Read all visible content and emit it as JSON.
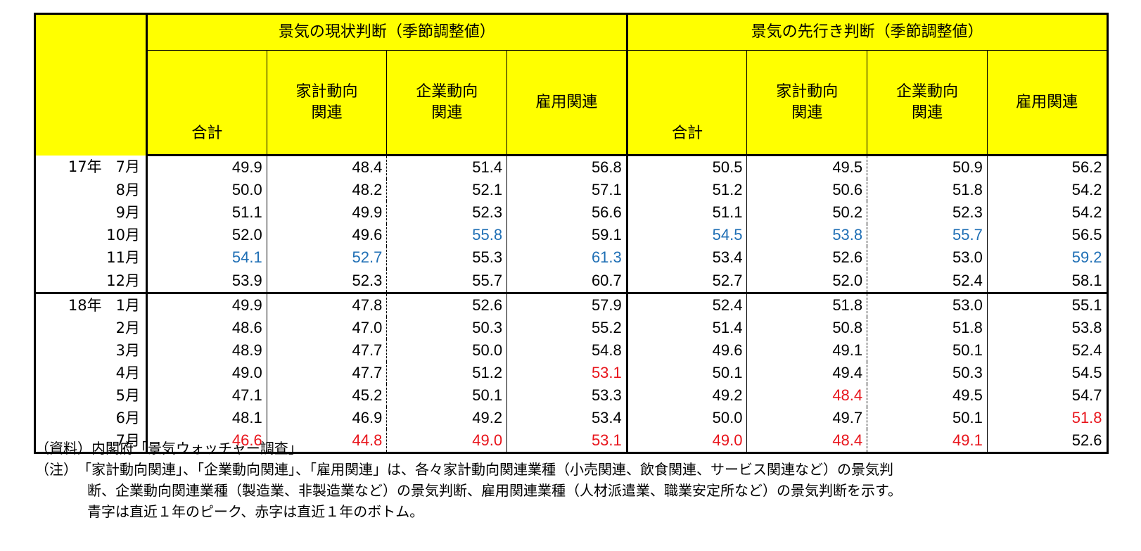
{
  "header": {
    "group1": "景気の現状判断（季節調整値）",
    "group2": "景気の先行き判断（季節調整値）",
    "columns": [
      "合計",
      "家計動向\n関連",
      "企業動向\n関連",
      "雇用関連",
      "合計",
      "家計動向\n関連",
      "企業動向\n関連",
      "雇用関連"
    ]
  },
  "rows": [
    {
      "year": "17年",
      "month": "7月",
      "values": [
        "49.9",
        "48.4",
        "51.4",
        "56.8",
        "50.5",
        "49.5",
        "50.9",
        "56.2"
      ],
      "colors": [
        "",
        "",
        "",
        "",
        "",
        "",
        "",
        ""
      ]
    },
    {
      "year": "",
      "month": "8月",
      "values": [
        "50.0",
        "48.2",
        "52.1",
        "57.1",
        "51.2",
        "50.6",
        "51.8",
        "54.2"
      ],
      "colors": [
        "",
        "",
        "",
        "",
        "",
        "",
        "",
        ""
      ]
    },
    {
      "year": "",
      "month": "9月",
      "values": [
        "51.1",
        "49.9",
        "52.3",
        "56.6",
        "51.1",
        "50.2",
        "52.3",
        "54.2"
      ],
      "colors": [
        "",
        "",
        "",
        "",
        "",
        "",
        "",
        ""
      ]
    },
    {
      "year": "",
      "month": "10月",
      "values": [
        "52.0",
        "49.6",
        "55.8",
        "59.1",
        "54.5",
        "53.8",
        "55.7",
        "56.5"
      ],
      "colors": [
        "",
        "",
        "blue",
        "",
        "blue",
        "blue",
        "blue",
        ""
      ]
    },
    {
      "year": "",
      "month": "11月",
      "values": [
        "54.1",
        "52.7",
        "55.3",
        "61.3",
        "53.4",
        "52.6",
        "53.0",
        "59.2"
      ],
      "colors": [
        "blue",
        "blue",
        "",
        "blue",
        "",
        "",
        "",
        "blue"
      ]
    },
    {
      "year": "",
      "month": "12月",
      "values": [
        "53.9",
        "52.3",
        "55.7",
        "60.7",
        "52.7",
        "52.0",
        "52.4",
        "58.1"
      ],
      "colors": [
        "",
        "",
        "",
        "",
        "",
        "",
        "",
        ""
      ]
    },
    {
      "year": "18年",
      "month": "1月",
      "values": [
        "49.9",
        "47.8",
        "52.6",
        "57.9",
        "52.4",
        "51.8",
        "53.0",
        "55.1"
      ],
      "colors": [
        "",
        "",
        "",
        "",
        "",
        "",
        "",
        ""
      ]
    },
    {
      "year": "",
      "month": "2月",
      "values": [
        "48.6",
        "47.0",
        "50.3",
        "55.2",
        "51.4",
        "50.8",
        "51.8",
        "53.8"
      ],
      "colors": [
        "",
        "",
        "",
        "",
        "",
        "",
        "",
        ""
      ]
    },
    {
      "year": "",
      "month": "3月",
      "values": [
        "48.9",
        "47.7",
        "50.0",
        "54.8",
        "49.6",
        "49.1",
        "50.1",
        "52.4"
      ],
      "colors": [
        "",
        "",
        "",
        "",
        "",
        "",
        "",
        ""
      ]
    },
    {
      "year": "",
      "month": "4月",
      "values": [
        "49.0",
        "47.7",
        "51.2",
        "53.1",
        "50.1",
        "49.4",
        "50.3",
        "54.5"
      ],
      "colors": [
        "",
        "",
        "",
        "red",
        "",
        "",
        "",
        ""
      ]
    },
    {
      "year": "",
      "month": "5月",
      "values": [
        "47.1",
        "45.2",
        "50.1",
        "53.3",
        "49.2",
        "48.4",
        "49.5",
        "54.7"
      ],
      "colors": [
        "",
        "",
        "",
        "",
        "",
        "red",
        "",
        ""
      ]
    },
    {
      "year": "",
      "month": "6月",
      "values": [
        "48.1",
        "46.9",
        "49.2",
        "53.4",
        "50.0",
        "49.7",
        "50.1",
        "51.8"
      ],
      "colors": [
        "",
        "",
        "",
        "",
        "",
        "",
        "",
        "red"
      ]
    },
    {
      "year": "",
      "month": "7月",
      "values": [
        "46.6",
        "44.8",
        "49.0",
        "53.1",
        "49.0",
        "48.4",
        "49.1",
        "52.6"
      ],
      "colors": [
        "red",
        "red",
        "red",
        "red",
        "red",
        "red",
        "red",
        ""
      ]
    }
  ],
  "notes": {
    "source": "（資料）内閣府「景気ウォッチャー調査」",
    "note_prefix": "（注）",
    "note_line1": "「家計動向関連」、「企業動向関連」、「雇用関連」は、各々家計動向関連業種（小売関連、飲食関連、サービス関連など）の景気判",
    "note_line2": "断、企業動向関連業種（製造業、非製造業など）の景気判断、雇用関連業種（人材派遣業、職業安定所など）の景気判断を示す。",
    "note_line3": "青字は直近１年のピーク、赤字は直近１年のボトム。"
  },
  "colors": {
    "header_bg": "#ffff00",
    "peak": "#1f6fb5",
    "bottom": "#e8141b"
  }
}
